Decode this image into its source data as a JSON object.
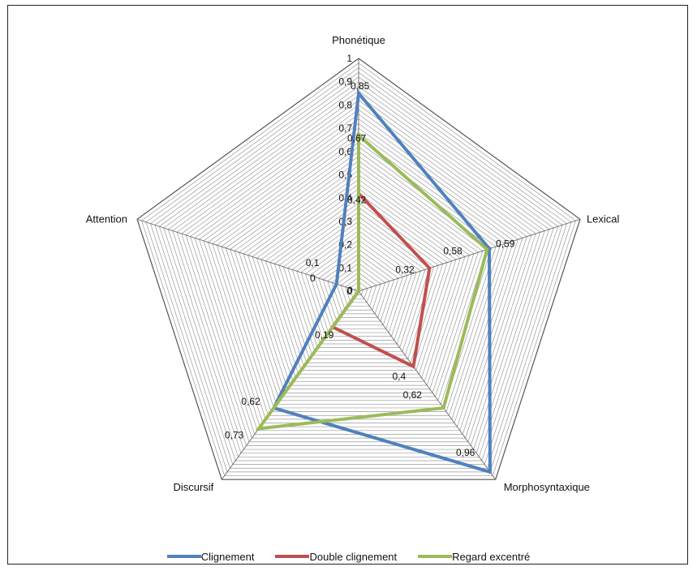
{
  "chart_data": {
    "type": "radar",
    "categories": [
      "Phonétique",
      "Lexical",
      "Morphosyntaxique",
      "Discursif",
      "Attention"
    ],
    "r_ticks": [
      "0",
      "0,1",
      "0,2",
      "0,3",
      "0,4",
      "0,5",
      "0,6",
      "0,7",
      "0,8",
      "0,9",
      "1"
    ],
    "rlim": [
      0,
      1
    ],
    "grid": true,
    "legend_position": "bottom",
    "series": [
      {
        "name": "Clignement",
        "color": "#4f81bd",
        "values": [
          0.85,
          0.59,
          0.96,
          0.62,
          0.1
        ],
        "labels": [
          "0,85",
          "0,59",
          "0,96",
          "0,62",
          "0,1"
        ]
      },
      {
        "name": "Double clignement",
        "color": "#c0504d",
        "values": [
          0.42,
          0.32,
          0.4,
          0.19,
          0
        ],
        "labels": [
          "0,42",
          "0,32",
          "0,4",
          "0,19",
          "0"
        ]
      },
      {
        "name": "Regard excentré",
        "color": "#9bbb59",
        "values": [
          0.67,
          0.58,
          0.62,
          0.73,
          0
        ],
        "labels": [
          "0,67",
          "0,58",
          "0,62",
          "0,73",
          "0"
        ]
      }
    ]
  }
}
